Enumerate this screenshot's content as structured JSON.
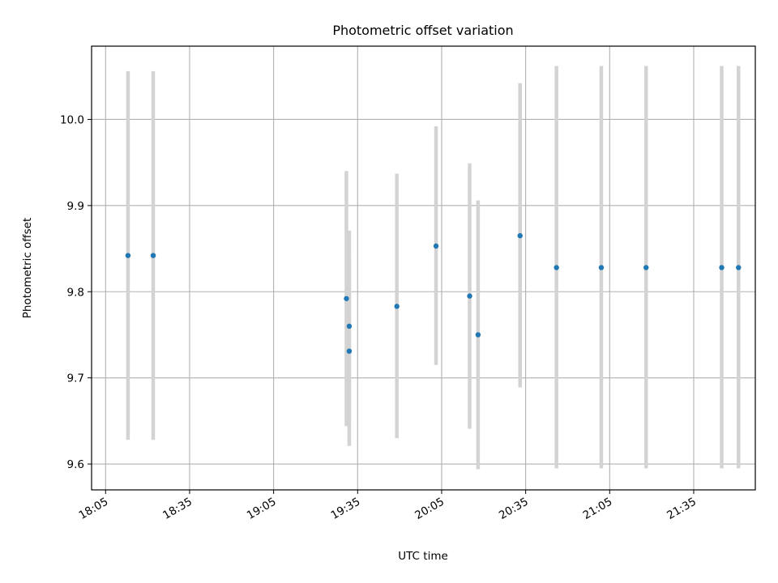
{
  "chart_data": {
    "type": "scatter",
    "title": "Photometric offset variation",
    "xlabel": "UTC time",
    "ylabel": "Photometric offset",
    "xlim_minutes": [
      1080,
      1317
    ],
    "ylim": [
      9.57,
      10.085
    ],
    "grid": true,
    "x_ticks": [
      {
        "label": "18:05",
        "minutes": 1085
      },
      {
        "label": "18:35",
        "minutes": 1115
      },
      {
        "label": "19:05",
        "minutes": 1145
      },
      {
        "label": "19:35",
        "minutes": 1175
      },
      {
        "label": "20:05",
        "minutes": 1205
      },
      {
        "label": "20:35",
        "minutes": 1235
      },
      {
        "label": "21:05",
        "minutes": 1265
      },
      {
        "label": "21:35",
        "minutes": 1295
      }
    ],
    "y_ticks": [
      9.6,
      9.7,
      9.8,
      9.9,
      10.0
    ],
    "y_tick_labels": [
      "9.6",
      "9.7",
      "9.8",
      "9.9",
      "10.0"
    ],
    "points": [
      {
        "time": "18:13",
        "y": 9.842,
        "low": 9.628,
        "high": 10.056
      },
      {
        "time": "18:22",
        "y": 9.842,
        "low": 9.628,
        "high": 10.056
      },
      {
        "time": "19:31",
        "y": 9.792,
        "low": 9.644,
        "high": 9.94
      },
      {
        "time": "19:32",
        "y": 9.731,
        "low": 9.621,
        "high": 9.841
      },
      {
        "time": "19:32",
        "y": 9.76,
        "low": 9.649,
        "high": 9.871
      },
      {
        "time": "19:49",
        "y": 9.783,
        "low": 9.63,
        "high": 9.937
      },
      {
        "time": "20:03",
        "y": 9.853,
        "low": 9.715,
        "high": 9.992
      },
      {
        "time": "20:15",
        "y": 9.795,
        "low": 9.641,
        "high": 9.949
      },
      {
        "time": "20:18",
        "y": 9.75,
        "low": 9.594,
        "high": 9.906
      },
      {
        "time": "20:33",
        "y": 9.865,
        "low": 9.689,
        "high": 10.042
      },
      {
        "time": "20:46",
        "y": 9.828,
        "low": 9.595,
        "high": 10.062
      },
      {
        "time": "21:02",
        "y": 9.828,
        "low": 9.595,
        "high": 10.062
      },
      {
        "time": "21:18",
        "y": 9.828,
        "low": 9.595,
        "high": 10.062
      },
      {
        "time": "21:45",
        "y": 9.828,
        "low": 9.595,
        "high": 10.062
      },
      {
        "time": "21:51",
        "y": 9.828,
        "low": 9.595,
        "high": 10.062
      }
    ],
    "colors": {
      "point": "#1f77b4",
      "error_bar": "#d3d3d3",
      "grid": "#b0b0b0"
    }
  }
}
